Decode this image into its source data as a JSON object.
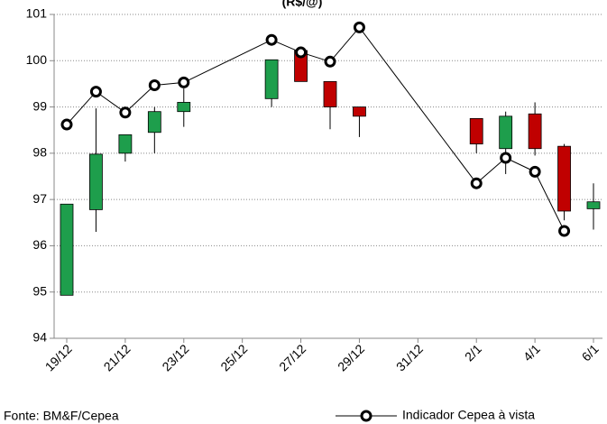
{
  "chart_data": {
    "type": "candlestick",
    "title": "(R$/@)",
    "source": "Fonte: BM&F/Cepea",
    "categories": [
      "19/12",
      null,
      "21/12",
      null,
      "23/12",
      null,
      "25/12",
      null,
      "27/12",
      null,
      "29/12",
      null,
      "31/12",
      null,
      "2/1",
      null,
      "4/1",
      null,
      "6/1"
    ],
    "open": [
      94.93,
      96.78,
      98.0,
      98.45,
      98.9,
      null,
      null,
      99.18,
      100.22,
      99.55,
      99.0,
      null,
      null,
      null,
      98.75,
      98.1,
      98.85,
      98.15,
      96.8
    ],
    "high": [
      96.9,
      98.97,
      98.4,
      99.0,
      99.4,
      null,
      null,
      100.02,
      100.22,
      99.55,
      99.0,
      null,
      null,
      null,
      98.75,
      98.9,
      99.1,
      98.2,
      97.35
    ],
    "low": [
      94.93,
      96.3,
      97.82,
      98.0,
      98.57,
      null,
      null,
      99.0,
      99.55,
      98.52,
      98.35,
      null,
      null,
      null,
      98.0,
      97.55,
      97.95,
      96.55,
      96.35
    ],
    "close": [
      96.9,
      97.98,
      98.4,
      98.9,
      99.1,
      null,
      null,
      100.02,
      99.55,
      99.0,
      98.8,
      null,
      null,
      null,
      98.2,
      98.8,
      98.1,
      96.75,
      96.95
    ],
    "up_color": "#1e9e4c",
    "down_color": "#c00000",
    "series": [
      {
        "name": "Indicador Cepea à vista",
        "color": "#000000",
        "values": [
          98.62,
          99.33,
          98.88,
          99.47,
          99.53,
          null,
          null,
          100.45,
          100.18,
          99.98,
          100.72,
          null,
          null,
          null,
          97.35,
          97.9,
          97.6,
          96.32,
          null
        ]
      }
    ],
    "ylim": [
      94,
      101
    ],
    "yticks": [
      94,
      95,
      96,
      97,
      98,
      99,
      100,
      101
    ],
    "grid": true,
    "legend": "bottom-right"
  }
}
